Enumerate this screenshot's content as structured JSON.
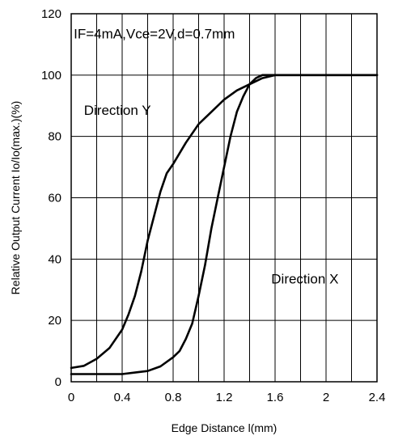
{
  "chart_data": {
    "type": "line",
    "title": "",
    "xlabel": "Edge Distance l(mm)",
    "ylabel": "Relative Output Current Io/Io(max.)(%)",
    "xlim": [
      0,
      2.4
    ],
    "ylim": [
      0,
      120
    ],
    "x_ticks": [
      0,
      0.4,
      0.8,
      1.2,
      1.6,
      2,
      2.4
    ],
    "x_tick_labels": [
      "0",
      "0.4",
      "0.8",
      "1.2",
      "1.6",
      "2",
      "2.4"
    ],
    "y_ticks": [
      0,
      20,
      40,
      60,
      80,
      100,
      120
    ],
    "y_tick_labels": [
      "0",
      "20",
      "40",
      "60",
      "80",
      "100",
      "120"
    ],
    "x_minor_step": 0.2,
    "grid": true,
    "annotations": [
      {
        "text": "IF=4mA,Vce=2V,d=0.7mm",
        "x": 0.02,
        "y": 112
      },
      {
        "text": "Direction Y",
        "x": 0.1,
        "y": 87
      },
      {
        "text": "Direction X",
        "x": 1.57,
        "y": 32
      }
    ],
    "series": [
      {
        "name": "",
        "label_ref": "Direction Y",
        "x": [
          0,
          0.1,
          0.2,
          0.3,
          0.4,
          0.45,
          0.5,
          0.55,
          0.6,
          0.65,
          0.7,
          0.75,
          0.8,
          0.9,
          1.0,
          1.1,
          1.2,
          1.3,
          1.4,
          1.5,
          1.6,
          1.8,
          2.0,
          2.2,
          2.4
        ],
        "y": [
          4.5,
          5.2,
          7.5,
          11,
          17,
          22,
          28,
          36,
          46,
          54,
          62,
          68,
          71,
          78,
          84,
          88,
          92,
          95,
          97,
          99,
          100,
          100,
          100,
          100,
          100
        ]
      },
      {
        "name": "",
        "label_ref": "Direction X",
        "x": [
          0,
          0.2,
          0.4,
          0.5,
          0.6,
          0.7,
          0.8,
          0.85,
          0.9,
          0.95,
          1.0,
          1.05,
          1.1,
          1.15,
          1.2,
          1.25,
          1.3,
          1.35,
          1.4,
          1.45,
          1.5,
          1.6,
          1.8,
          2.0,
          2.2,
          2.4
        ],
        "y": [
          2.5,
          2.5,
          2.5,
          3,
          3.5,
          5,
          8,
          10,
          14,
          19,
          28,
          38,
          50,
          60,
          70,
          80,
          88,
          93,
          97,
          99,
          100,
          100,
          100,
          100,
          100,
          100
        ]
      }
    ]
  }
}
